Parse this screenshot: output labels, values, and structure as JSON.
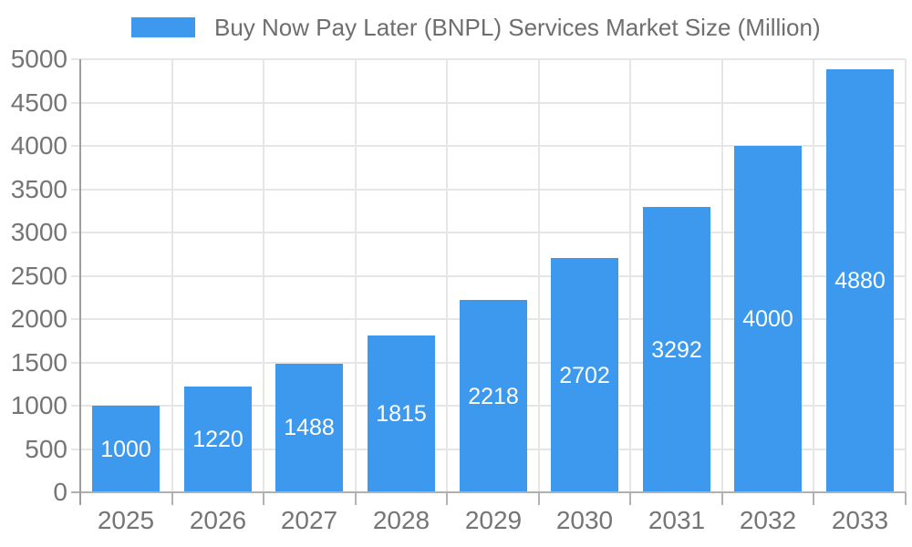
{
  "chart_data": {
    "type": "bar",
    "title": "Buy Now Pay Later (BNPL) Services Market Size (Million)",
    "categories": [
      "2025",
      "2026",
      "2027",
      "2028",
      "2029",
      "2030",
      "2031",
      "2032",
      "2033"
    ],
    "series": [
      {
        "name": "Buy Now Pay Later (BNPL) Services Market Size (Million)",
        "color": "#3d99ee",
        "values": [
          1000,
          1220,
          1488,
          1815,
          2218,
          2702,
          3292,
          4000,
          4880
        ]
      }
    ],
    "xlabel": "",
    "ylabel": "",
    "ylim": [
      0,
      5000
    ],
    "ytick_step": 500,
    "yticks": [
      "0",
      "500",
      "1000",
      "1500",
      "2000",
      "2500",
      "3000",
      "3500",
      "4000",
      "4500",
      "5000"
    ],
    "grid": true,
    "legend_position": "top",
    "value_labels": {
      "show": true,
      "position": "center",
      "color": "#ffffff"
    }
  },
  "colors": {
    "bar": "#3d99ee",
    "background": "#ffffff",
    "gridline": "#e6e6e6",
    "axis_line": "#9e9e9e",
    "baseline": "#b0b0b0",
    "x_tick": "#b3b3b3",
    "tick_label": "#757575",
    "legend_text": "#6e6e6e",
    "value_label": "#ffffff"
  }
}
